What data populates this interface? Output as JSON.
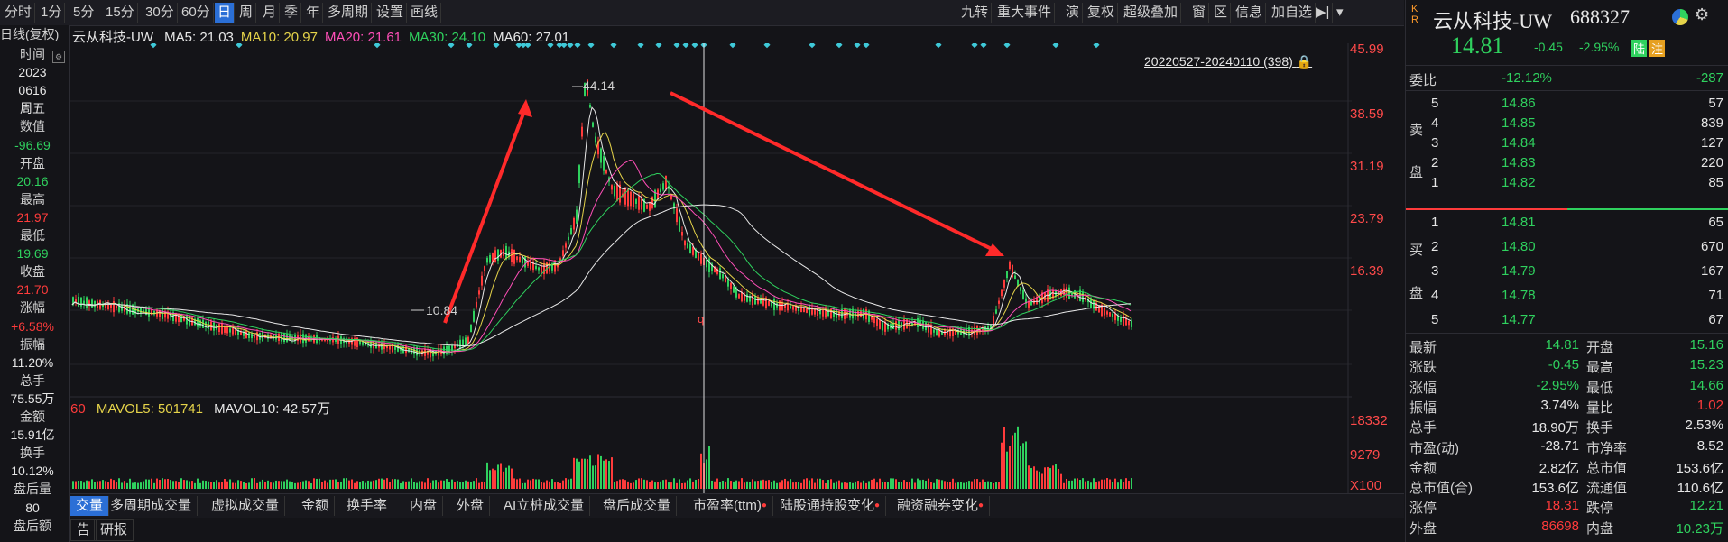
{
  "toolbar": {
    "left_items": [
      "分时",
      "1分",
      "5分",
      "15分",
      "30分",
      "60分",
      "日",
      "周",
      "月",
      "季",
      "年",
      "多周期",
      "设置",
      "画线"
    ],
    "active": "日",
    "right_items": [
      "九转",
      "重大事件",
      "演",
      "复权",
      "超级叠加",
      "窗",
      "区",
      "信息",
      "加自选"
    ]
  },
  "chart": {
    "period_label": "日线(复权)",
    "stock_label": "云从科技-UW",
    "ma": [
      {
        "label": "MA5: 21.03",
        "color": "#e8e8e8"
      },
      {
        "label": "MA10: 20.97",
        "color": "#e6d44a"
      },
      {
        "label": "MA20: 21.61",
        "color": "#ff4fb8"
      },
      {
        "label": "MA30: 24.10",
        "color": "#2fd15e"
      },
      {
        "label": "MA60: 27.01",
        "color": "#e8e8e8"
      }
    ],
    "range": "20220527-20240110 (398)",
    "high_annot": "44.14",
    "low_annot": "10.84",
    "cursor_label": "q",
    "y_labels": [
      "45.99",
      "38.59",
      "31.19",
      "23.79",
      "16.39"
    ],
    "vol": {
      "prefix": "60",
      "mavol5": "MAVOL5: 501741",
      "mavol10": "MAVOL10: 42.57万",
      "y_labels": [
        "18332",
        "9279",
        "X100"
      ]
    }
  },
  "left_panel": [
    {
      "t": "时间",
      "c": "lab"
    },
    {
      "t": "2023",
      "c": "white"
    },
    {
      "t": "0616",
      "c": "white"
    },
    {
      "t": "周五",
      "c": "white"
    },
    {
      "t": "数值",
      "c": "lab"
    },
    {
      "t": "-96.69",
      "c": "green"
    },
    {
      "t": "开盘",
      "c": "lab"
    },
    {
      "t": "20.16",
      "c": "green"
    },
    {
      "t": "最高",
      "c": "lab"
    },
    {
      "t": "21.97",
      "c": "red"
    },
    {
      "t": "最低",
      "c": "lab"
    },
    {
      "t": "19.69",
      "c": "green"
    },
    {
      "t": "收盘",
      "c": "lab"
    },
    {
      "t": "21.70",
      "c": "red"
    },
    {
      "t": "涨幅",
      "c": "lab"
    },
    {
      "t": "+6.58%",
      "c": "red"
    },
    {
      "t": "振幅",
      "c": "lab"
    },
    {
      "t": "11.20%",
      "c": "white"
    },
    {
      "t": "总手",
      "c": "lab"
    },
    {
      "t": "75.55万",
      "c": "white"
    },
    {
      "t": "金额",
      "c": "lab"
    },
    {
      "t": "15.91亿",
      "c": "white"
    },
    {
      "t": "换手",
      "c": "lab"
    },
    {
      "t": "10.12%",
      "c": "white"
    },
    {
      "t": "盘后量",
      "c": "lab"
    },
    {
      "t": "80",
      "c": "white"
    },
    {
      "t": "盘后额",
      "c": "lab"
    }
  ],
  "tabs": [
    "交量",
    "多周期成交量",
    "虚拟成交量",
    "金额",
    "换手率",
    "内盘",
    "外盘",
    "AI立桩成交量",
    "盘后成交量",
    "市盈率(ttm)",
    "陆股通持股变化",
    "融资融券变化"
  ],
  "tabs_dot": [
    false,
    false,
    false,
    false,
    false,
    false,
    false,
    false,
    false,
    true,
    true,
    true
  ],
  "tabs2": [
    "告",
    "研报"
  ],
  "quote": {
    "name": "云从科技-UW",
    "code": "688327",
    "kr": "K\nR",
    "price": "14.81",
    "change": "-0.45",
    "pct": "-2.95%",
    "tag1": "陆",
    "tag2": "注",
    "weibi_label": "委比",
    "weibi_pct": "-12.12%",
    "weibi_val": "-287",
    "sell_label": [
      "卖",
      "盘"
    ],
    "buy_label": [
      "买",
      "盘"
    ],
    "sells": [
      {
        "n": "5",
        "p": "14.86",
        "v": "57"
      },
      {
        "n": "4",
        "p": "14.85",
        "v": "839"
      },
      {
        "n": "3",
        "p": "14.84",
        "v": "127"
      },
      {
        "n": "2",
        "p": "14.83",
        "v": "220"
      },
      {
        "n": "1",
        "p": "14.82",
        "v": "85"
      }
    ],
    "buys": [
      {
        "n": "1",
        "p": "14.81",
        "v": "65"
      },
      {
        "n": "2",
        "p": "14.80",
        "v": "670"
      },
      {
        "n": "3",
        "p": "14.79",
        "v": "167"
      },
      {
        "n": "4",
        "p": "14.78",
        "v": "71"
      },
      {
        "n": "5",
        "p": "14.77",
        "v": "67"
      }
    ],
    "stats": [
      {
        "l1": "最新",
        "v1": "14.81",
        "c1": "green",
        "l2": "开盘",
        "v2": "15.16",
        "c2": "green"
      },
      {
        "l1": "涨跌",
        "v1": "-0.45",
        "c1": "green",
        "l2": "最高",
        "v2": "15.23",
        "c2": "green"
      },
      {
        "l1": "涨幅",
        "v1": "-2.95%",
        "c1": "green",
        "l2": "最低",
        "v2": "14.66",
        "c2": "green"
      },
      {
        "l1": "振幅",
        "v1": "3.74%",
        "c1": "white",
        "l2": "量比",
        "v2": "1.02",
        "c2": "red"
      },
      {
        "l1": "总手",
        "v1": "18.90万",
        "c1": "white",
        "l2": "换手",
        "v2": "2.53%",
        "c2": "white"
      },
      {
        "l1": "市盈(动)",
        "v1": "-28.71",
        "c1": "white",
        "l2": "市净率",
        "v2": "8.52",
        "c2": "white"
      },
      {
        "l1": "金额",
        "v1": "2.82亿",
        "c1": "white",
        "l2": "总市值",
        "v2": "153.6亿",
        "c2": "white"
      },
      {
        "l1": "总市值(合)",
        "v1": "153.6亿",
        "c1": "white",
        "l2": "流通值",
        "v2": "110.6亿",
        "c2": "white"
      },
      {
        "l1": "涨停",
        "v1": "18.31",
        "c1": "red",
        "l2": "跌停",
        "v2": "12.21",
        "c2": "green"
      },
      {
        "l1": "外盘",
        "v1": "86698",
        "c1": "red",
        "l2": "内盘",
        "v2": "10.23万",
        "c2": "green"
      }
    ]
  },
  "colors": {
    "up": "#ff3b3b",
    "down": "#2fd15e",
    "accent": "#2b6fd6"
  }
}
